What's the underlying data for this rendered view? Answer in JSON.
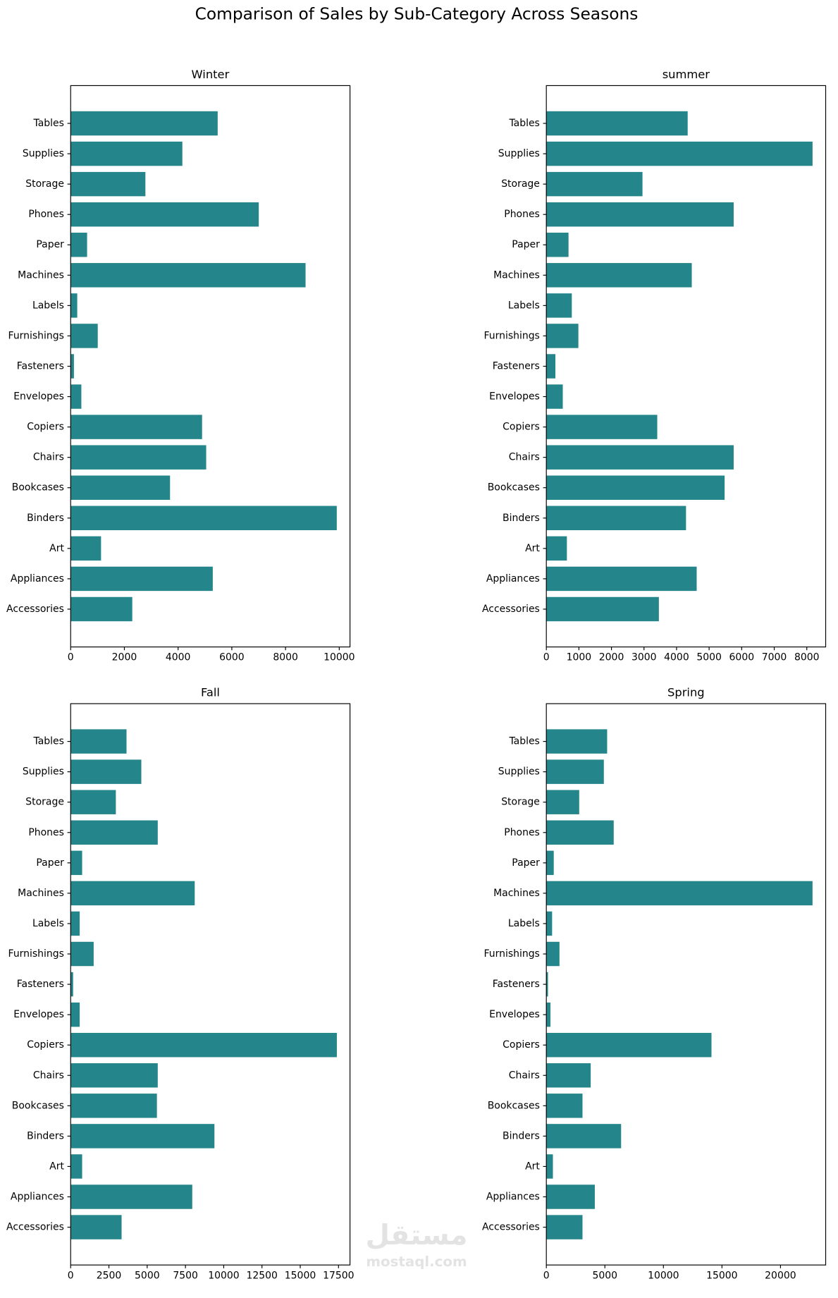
{
  "title": "Comparison of Sales by Sub-Category Across Seasons",
  "watermark": [
    "مستقل",
    "mostaql.com"
  ],
  "chart_data": [
    {
      "type": "bar",
      "orientation": "horizontal",
      "title": "Winter",
      "color": "#24868a",
      "categories": [
        "Accessories",
        "Appliances",
        "Art",
        "Binders",
        "Bookcases",
        "Chairs",
        "Copiers",
        "Envelopes",
        "Fasteners",
        "Furnishings",
        "Labels",
        "Machines",
        "Paper",
        "Phones",
        "Storage",
        "Supplies",
        "Tables"
      ],
      "values": [
        2294,
        5291,
        1131,
        9908,
        3700,
        5046,
        4893,
        398,
        122,
        1009,
        245,
        8746,
        612,
        7003,
        2783,
        4159,
        5474
      ],
      "xlim": [
        0,
        10400
      ],
      "xticks": [
        0,
        2000,
        4000,
        6000,
        8000,
        10000
      ]
    },
    {
      "type": "bar",
      "orientation": "horizontal",
      "title": "summer",
      "color": "#24868a",
      "categories": [
        "Accessories",
        "Appliances",
        "Art",
        "Binders",
        "Bookcases",
        "Chairs",
        "Copiers",
        "Envelopes",
        "Fasteners",
        "Furnishings",
        "Labels",
        "Machines",
        "Paper",
        "Phones",
        "Storage",
        "Supplies",
        "Tables"
      ],
      "values": [
        3457,
        4618,
        631,
        4290,
        5476,
        5754,
        3407,
        505,
        278,
        984,
        782,
        4467,
        681,
        5754,
        2953,
        8177,
        4341
      ],
      "xlim": [
        0,
        8580
      ],
      "xticks": [
        0,
        1000,
        2000,
        3000,
        4000,
        5000,
        6000,
        7000,
        8000
      ]
    },
    {
      "type": "bar",
      "orientation": "horizontal",
      "title": "Fall",
      "color": "#24868a",
      "categories": [
        "Accessories",
        "Appliances",
        "Art",
        "Binders",
        "Bookcases",
        "Chairs",
        "Copiers",
        "Envelopes",
        "Fasteners",
        "Furnishings",
        "Labels",
        "Machines",
        "Paper",
        "Phones",
        "Storage",
        "Supplies",
        "Tables"
      ],
      "values": [
        3328,
        7945,
        751,
        9394,
        5636,
        5690,
        17392,
        590,
        161,
        1503,
        590,
        8106,
        751,
        5690,
        2952,
        4616,
        3650
      ],
      "xlim": [
        0,
        18250
      ],
      "xticks": [
        0,
        2500,
        5000,
        7500,
        10000,
        12500,
        15000,
        17500
      ]
    },
    {
      "type": "bar",
      "orientation": "horizontal",
      "title": "Spring",
      "color": "#24868a",
      "categories": [
        "Accessories",
        "Appliances",
        "Art",
        "Binders",
        "Bookcases",
        "Chairs",
        "Copiers",
        "Envelopes",
        "Fasteners",
        "Furnishings",
        "Labels",
        "Machines",
        "Paper",
        "Phones",
        "Storage",
        "Supplies",
        "Tables"
      ],
      "values": [
        3088,
        4140,
        561,
        6386,
        3088,
        3789,
        14105,
        351,
        140,
        1123,
        491,
        22737,
        632,
        5754,
        2807,
        4912,
        5193
      ],
      "xlim": [
        0,
        23860
      ],
      "xticks": [
        0,
        5000,
        10000,
        15000,
        20000
      ]
    }
  ]
}
